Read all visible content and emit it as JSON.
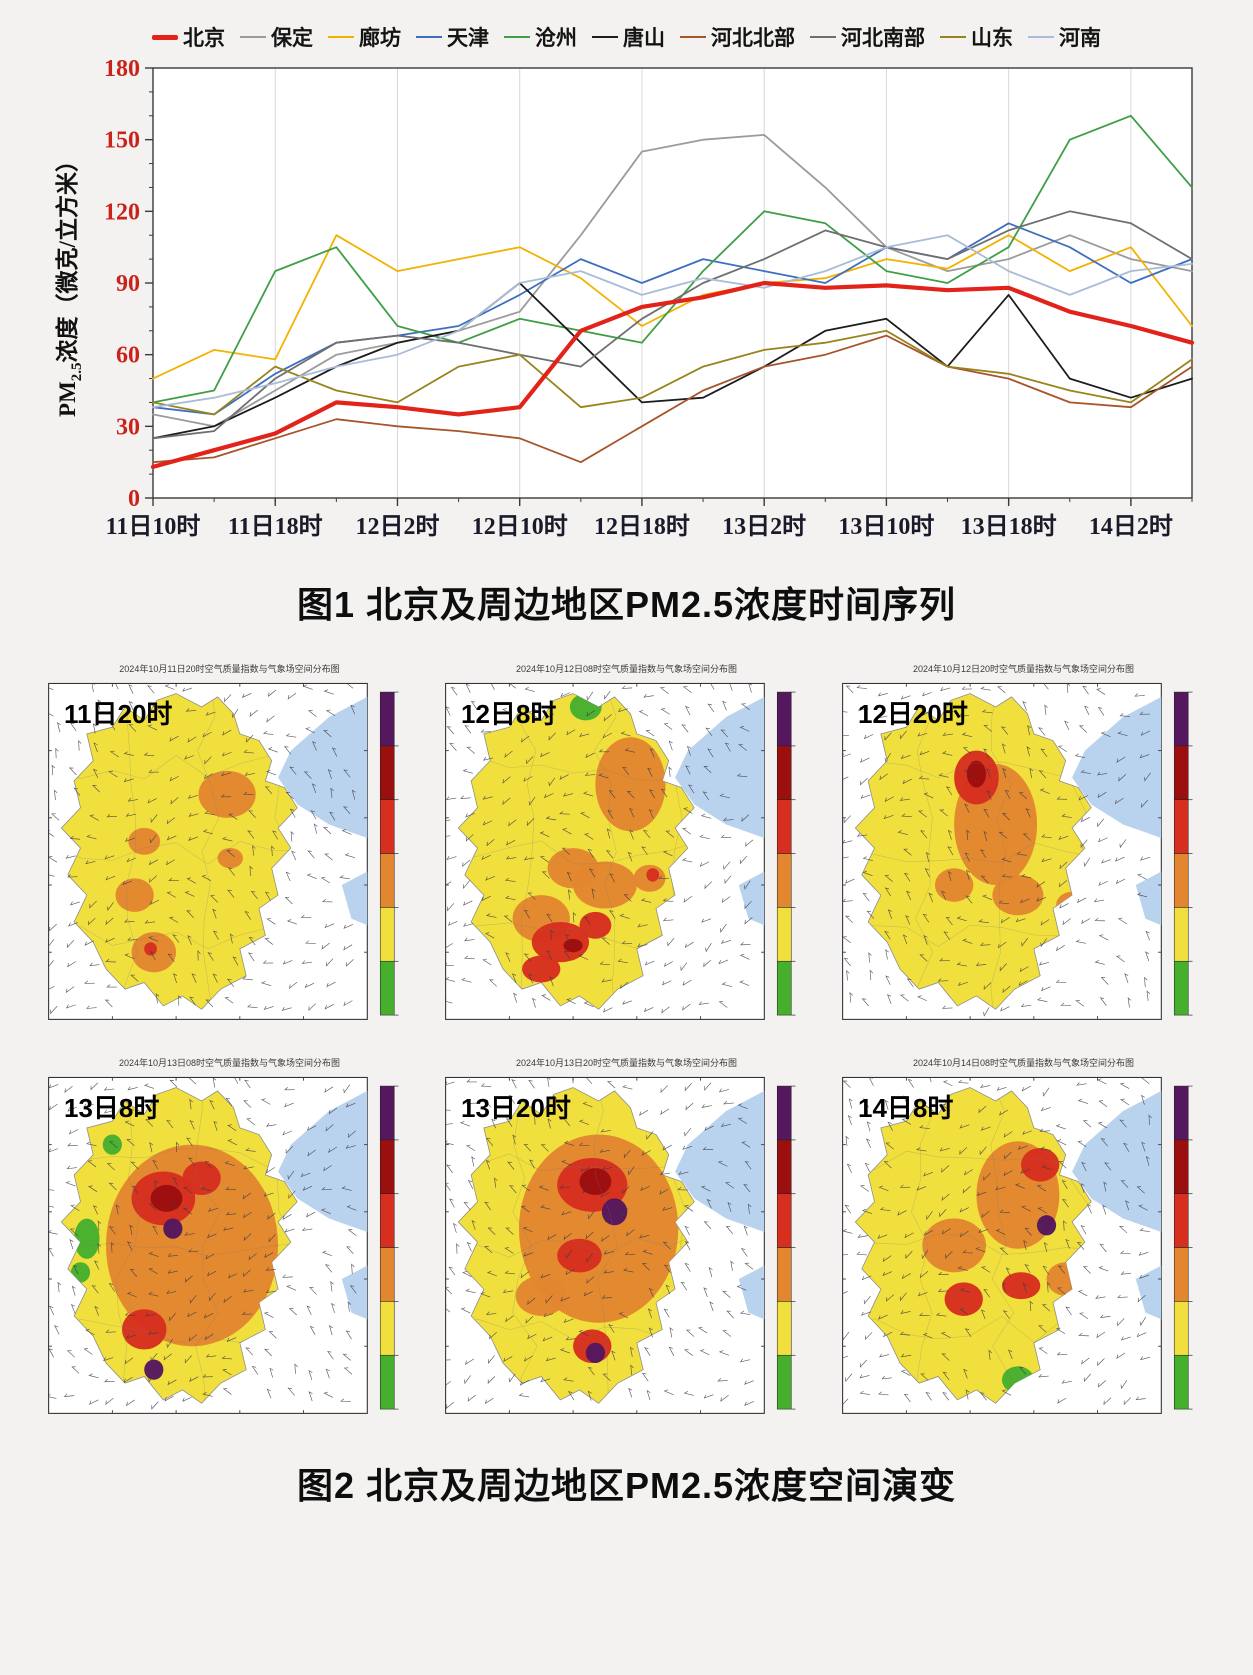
{
  "page": {
    "background": "#f3f2f0"
  },
  "figure1": {
    "caption": "图1 北京及周边地区PM2.5浓度时间序列",
    "ylabel_prefix": "PM",
    "ylabel_sub": "2.5",
    "ylabel_suffix": "浓度（微克/立方米）",
    "ytick_color": "#c9231c",
    "xtick_color": "#1a1a2a"
  },
  "figure2": {
    "caption": "图2 北京及周边地区PM2.5浓度空间演变",
    "aqi_palette": {
      "yellow": "#f0df3c",
      "orange": "#e2862f",
      "red": "#d62f1f",
      "dark_red": "#9c0f0f",
      "purple": "#55175e",
      "green": "#46b02e",
      "sea": "#b9d3ee"
    },
    "colorbar_top_to_bottom": [
      "#55175e",
      "#9c0f0f",
      "#d62f1f",
      "#e2862f",
      "#f0df3c",
      "#46b02e"
    ],
    "panels": [
      {
        "time_label": "11日20时",
        "header": "2024年10月11日20时空气质量指数与气象场空间分布图",
        "blobs": [
          [
            56,
            33,
            9,
            7,
            "orange"
          ],
          [
            30,
            47,
            5,
            4,
            "orange"
          ],
          [
            27,
            63,
            6,
            5,
            "orange"
          ],
          [
            33,
            80,
            7,
            6,
            "orange"
          ],
          [
            57,
            52,
            4,
            3,
            "orange"
          ],
          [
            32,
            79,
            2,
            2,
            "red"
          ]
        ]
      },
      {
        "time_label": "12日8时",
        "header": "2024年10月12日08时空气质量指数与气象场空间分布图",
        "blobs": [
          [
            44,
            7,
            5,
            4,
            "green"
          ],
          [
            59,
            5,
            4,
            3,
            "green"
          ],
          [
            58,
            30,
            11,
            14,
            "orange"
          ],
          [
            40,
            55,
            8,
            6,
            "orange"
          ],
          [
            50,
            60,
            10,
            7,
            "orange"
          ],
          [
            30,
            70,
            9,
            7,
            "orange"
          ],
          [
            64,
            58,
            5,
            4,
            "orange"
          ],
          [
            36,
            77,
            9,
            6,
            "red"
          ],
          [
            47,
            72,
            5,
            4,
            "red"
          ],
          [
            30,
            85,
            6,
            4,
            "red"
          ],
          [
            40,
            78,
            3,
            2,
            "dark_red"
          ],
          [
            65,
            57,
            2,
            2,
            "red"
          ]
        ]
      },
      {
        "time_label": "12日20时",
        "header": "2024年10月12日20时空气质量指数与气象场空间分布图",
        "blobs": [
          [
            48,
            42,
            13,
            18,
            "orange"
          ],
          [
            55,
            63,
            8,
            6,
            "orange"
          ],
          [
            35,
            60,
            6,
            5,
            "orange"
          ],
          [
            72,
            66,
            5,
            4,
            "orange"
          ],
          [
            42,
            28,
            7,
            8,
            "red"
          ],
          [
            42,
            27,
            3,
            4,
            "dark_red"
          ],
          [
            88,
            52,
            4,
            3,
            "green"
          ],
          [
            72,
            66,
            2,
            2,
            "red"
          ]
        ]
      },
      {
        "time_label": "13日8时",
        "header": "2024年10月13日08时空气质量指数与气象场空间分布图",
        "blobs": [
          [
            45,
            50,
            27,
            30,
            "orange"
          ],
          [
            48,
            30,
            6,
            5,
            "red"
          ],
          [
            36,
            36,
            10,
            8,
            "red"
          ],
          [
            37,
            36,
            5,
            4,
            "dark_red"
          ],
          [
            39,
            45,
            3,
            3,
            "purple"
          ],
          [
            30,
            75,
            7,
            6,
            "red"
          ],
          [
            33,
            87,
            3,
            3,
            "purple"
          ],
          [
            12,
            48,
            4,
            6,
            "green"
          ],
          [
            20,
            20,
            3,
            3,
            "green"
          ],
          [
            10,
            58,
            3,
            3,
            "green"
          ]
        ]
      },
      {
        "time_label": "13日20时",
        "header": "2024年10月13日20时空气质量指数与气象场空间分布图",
        "blobs": [
          [
            48,
            45,
            25,
            28,
            "orange"
          ],
          [
            30,
            65,
            8,
            6,
            "orange"
          ],
          [
            46,
            32,
            11,
            8,
            "red"
          ],
          [
            47,
            31,
            5,
            4,
            "dark_red"
          ],
          [
            53,
            40,
            4,
            4,
            "purple"
          ],
          [
            42,
            53,
            7,
            5,
            "red"
          ],
          [
            80,
            58,
            6,
            8,
            "green"
          ],
          [
            72,
            68,
            4,
            4,
            "green"
          ],
          [
            46,
            80,
            6,
            5,
            "red"
          ],
          [
            47,
            82,
            3,
            3,
            "purple"
          ]
        ]
      },
      {
        "time_label": "14日8时",
        "header": "2024年10月14日08时空气质量指数与气象场空间分布图",
        "blobs": [
          [
            55,
            35,
            13,
            16,
            "orange"
          ],
          [
            35,
            50,
            10,
            8,
            "orange"
          ],
          [
            70,
            60,
            6,
            5,
            "orange"
          ],
          [
            62,
            26,
            6,
            5,
            "red"
          ],
          [
            64,
            44,
            3,
            3,
            "purple"
          ],
          [
            56,
            62,
            6,
            4,
            "red"
          ],
          [
            38,
            66,
            6,
            5,
            "red"
          ],
          [
            86,
            50,
            4,
            5,
            "green"
          ],
          [
            55,
            90,
            5,
            4,
            "green"
          ]
        ]
      }
    ]
  },
  "chart_data": [
    {
      "type": "line",
      "title": "北京及周边地区PM2.5浓度时间序列",
      "ylabel": "PM2.5浓度（微克/立方米）",
      "ylim": [
        0,
        180
      ],
      "yticks": [
        0,
        30,
        60,
        90,
        120,
        150,
        180
      ],
      "x": [
        "11日10时",
        "11日14时",
        "11日18时",
        "11日22时",
        "12日2时",
        "12日6时",
        "12日10时",
        "12日14时",
        "12日18时",
        "12日22时",
        "13日2时",
        "13日6时",
        "13日10时",
        "13日14时",
        "13日18时",
        "13日22时",
        "14日2时",
        "14日6时"
      ],
      "xticks": [
        "11日10时",
        "11日18时",
        "12日2时",
        "12日10时",
        "12日18时",
        "13日2时",
        "13日10时",
        "13日18时",
        "14日2时"
      ],
      "xtick_indices": [
        0,
        2,
        4,
        6,
        8,
        10,
        12,
        14,
        16
      ],
      "grid": "vertical",
      "legend_position": "top",
      "series": [
        {
          "name": "北京",
          "color": "#e2231a",
          "thick": true,
          "values": [
            13,
            20,
            27,
            40,
            38,
            35,
            38,
            70,
            80,
            84,
            90,
            88,
            89,
            87,
            88,
            78,
            72,
            65
          ]
        },
        {
          "name": "保定",
          "color": "#9b9b9b",
          "values": [
            35,
            30,
            45,
            60,
            65,
            70,
            78,
            110,
            145,
            150,
            152,
            130,
            105,
            95,
            100,
            110,
            100,
            95
          ]
        },
        {
          "name": "廊坊",
          "color": "#f2b200",
          "values": [
            50,
            62,
            58,
            110,
            95,
            100,
            105,
            92,
            72,
            85,
            90,
            92,
            100,
            96,
            110,
            95,
            105,
            72
          ]
        },
        {
          "name": "天津",
          "color": "#3e6fbe",
          "values": [
            38,
            35,
            52,
            65,
            68,
            72,
            85,
            100,
            90,
            100,
            95,
            90,
            105,
            100,
            115,
            105,
            90,
            100
          ]
        },
        {
          "name": "沧州",
          "color": "#3f9e45",
          "values": [
            40,
            45,
            95,
            105,
            72,
            65,
            75,
            70,
            65,
            95,
            120,
            115,
            95,
            90,
            105,
            150,
            160,
            130
          ]
        },
        {
          "name": "唐山",
          "color": "#1c1c1c",
          "values": [
            25,
            30,
            42,
            55,
            65,
            70,
            90,
            65,
            40,
            42,
            55,
            70,
            75,
            55,
            85,
            50,
            42,
            50
          ]
        },
        {
          "name": "河北北部",
          "color": "#a8542a",
          "values": [
            15,
            17,
            25,
            33,
            30,
            28,
            25,
            15,
            30,
            45,
            55,
            60,
            68,
            55,
            50,
            40,
            38,
            55
          ]
        },
        {
          "name": "河北南部",
          "color": "#6f6f6f",
          "values": [
            25,
            28,
            50,
            65,
            68,
            65,
            60,
            55,
            75,
            90,
            100,
            112,
            105,
            100,
            112,
            120,
            115,
            100
          ]
        },
        {
          "name": "山东",
          "color": "#97851c",
          "values": [
            40,
            35,
            55,
            45,
            40,
            55,
            60,
            38,
            42,
            55,
            62,
            65,
            70,
            55,
            52,
            45,
            40,
            58
          ]
        },
        {
          "name": "河南",
          "color": "#a9bdd8",
          "values": [
            38,
            42,
            48,
            55,
            60,
            70,
            90,
            95,
            85,
            92,
            88,
            95,
            105,
            110,
            95,
            85,
            95,
            98
          ]
        }
      ]
    },
    {
      "type": "heatmap",
      "title": "空气质量指数与气象场空间分布图",
      "panel_times": [
        "11日20时",
        "12日8时",
        "12日20时",
        "13日8时",
        "13日20时",
        "14日8时"
      ],
      "colorscale_low_to_high": [
        "green",
        "yellow",
        "orange",
        "red",
        "dark_red",
        "purple"
      ]
    }
  ]
}
